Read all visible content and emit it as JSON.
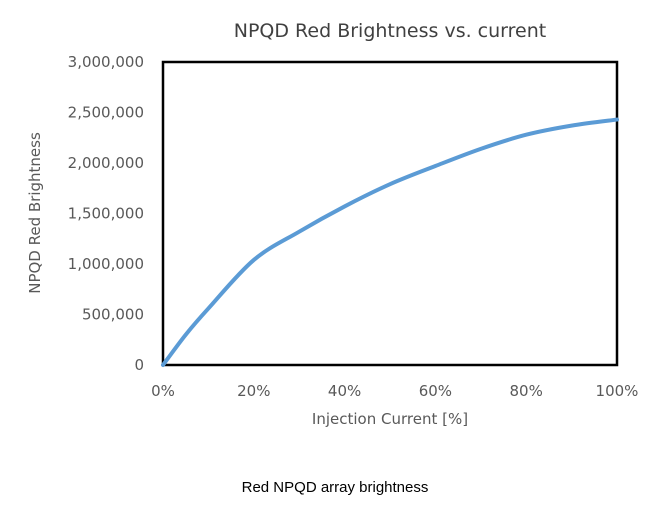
{
  "chart_data": {
    "type": "line",
    "title": "NPQD Red Brightness vs. current",
    "xlabel": "Injection Current [%]",
    "ylabel": "NPQD Red Brightness",
    "xlim": [
      0,
      100
    ],
    "ylim": [
      0,
      3000000
    ],
    "x_ticks": [
      "0%",
      "20%",
      "40%",
      "60%",
      "80%",
      "100%"
    ],
    "y_ticks": [
      "0",
      "500,000",
      "1,000,000",
      "1,500,000",
      "2,000,000",
      "2,500,000",
      "3,000,000"
    ],
    "grid": false,
    "series": [
      {
        "name": "NPQD Red Brightness",
        "color": "#5b9bd5",
        "x": [
          0,
          5,
          10,
          20,
          30,
          40,
          50,
          60,
          70,
          80,
          90,
          100
        ],
        "y": [
          0,
          300000,
          560000,
          1040000,
          1320000,
          1570000,
          1790000,
          1970000,
          2140000,
          2280000,
          2370000,
          2430000
        ]
      }
    ]
  },
  "caption": "Red NPQD array brightness"
}
